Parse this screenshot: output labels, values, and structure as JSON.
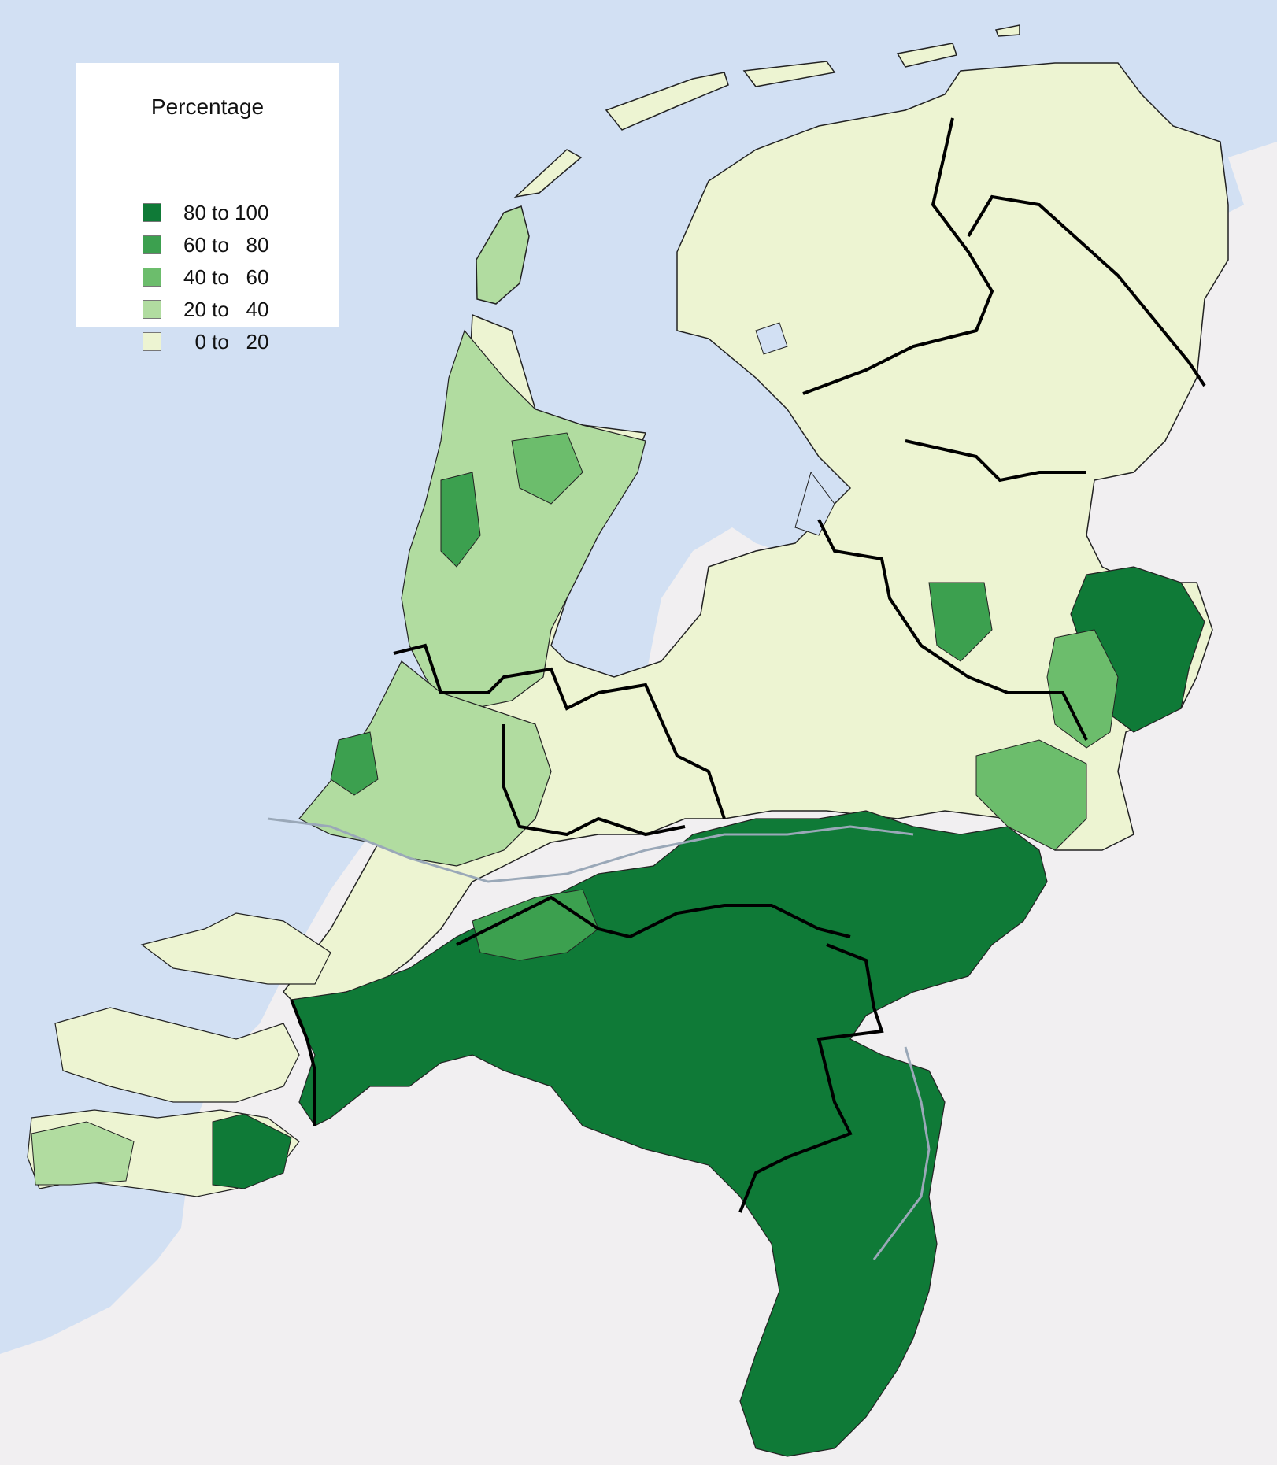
{
  "legend": {
    "title": "Percentage",
    "classes": [
      {
        "label": "80 to 100",
        "color": "#0f7a37"
      },
      {
        "label": "60 to   80",
        "color": "#3ca04f"
      },
      {
        "label": "40 to   60",
        "color": "#6cbd6c"
      },
      {
        "label": "20 to   40",
        "color": "#b1dca0"
      },
      {
        "label": "  0 to   20",
        "color": "#edf4d2"
      }
    ]
  },
  "colors": {
    "sea": "#d2e0f3",
    "foreign_land": "#f1eff1",
    "province_border": "#000000",
    "municipality_border": "#222222",
    "river": "#9aa8b8"
  }
}
